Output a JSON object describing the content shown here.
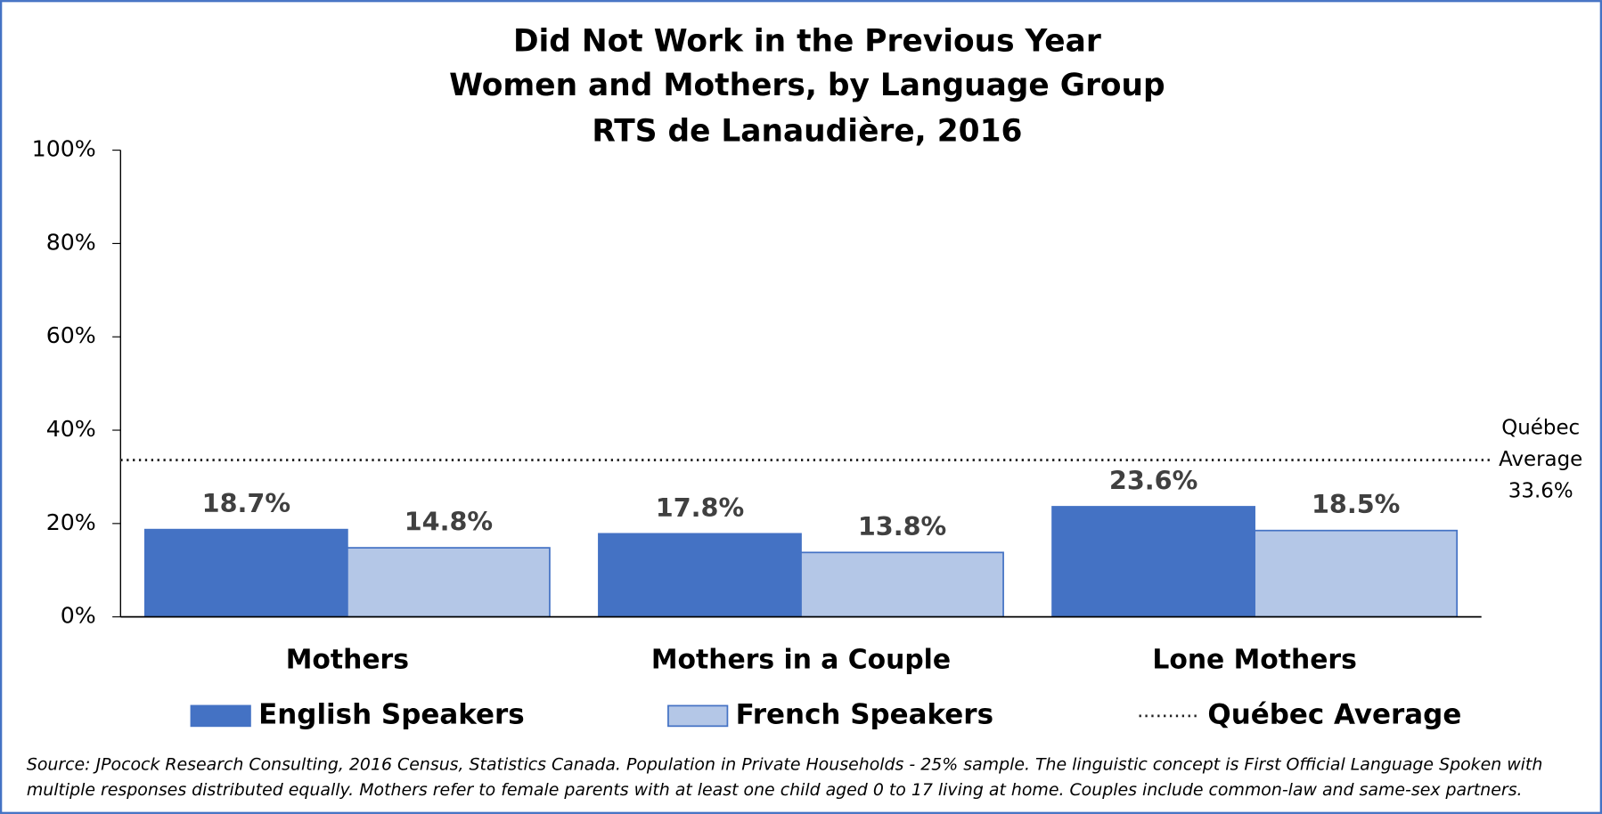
{
  "chart_data": {
    "type": "bar",
    "title": [
      "Did Not Work in the Previous Year",
      "Women and Mothers, by Language Group",
      "RTS de Lanaudière, 2016"
    ],
    "categories": [
      "Mothers",
      "Mothers in a Couple",
      "Lone Mothers"
    ],
    "series": [
      {
        "name": "English Speakers",
        "color": "#4472c4",
        "values": [
          18.7,
          17.8,
          23.6
        ],
        "value_labels": [
          "18.7%",
          "17.8%",
          "23.6%"
        ]
      },
      {
        "name": "French Speakers",
        "color": "#b4c7e7",
        "values": [
          14.8,
          13.8,
          18.5
        ],
        "value_labels": [
          "14.8%",
          "13.8%",
          "18.5%"
        ]
      }
    ],
    "reference_line": {
      "name": "Québec Average",
      "value": 33.6,
      "label": [
        "Québec",
        "Average",
        "33.6%"
      ]
    },
    "ylim": [
      0,
      100
    ],
    "yticks": [
      {
        "value": 0,
        "label": "0%"
      },
      {
        "value": 20,
        "label": "20%"
      },
      {
        "value": 40,
        "label": "40%"
      },
      {
        "value": 60,
        "label": "60%"
      },
      {
        "value": 80,
        "label": "80%"
      },
      {
        "value": 100,
        "label": "100%"
      }
    ],
    "legend": "bottom",
    "source": [
      "Source: JPocock Research Consulting, 2016 Census, Statistics Canada. Population in Private Households - 25% sample. The linguistic concept is First Official Language Spoken with",
      "multiple responses distributed equally. Mothers refer to female parents with at least one child aged 0 to 17 living at home. Couples include common-law and same-sex partners."
    ]
  }
}
